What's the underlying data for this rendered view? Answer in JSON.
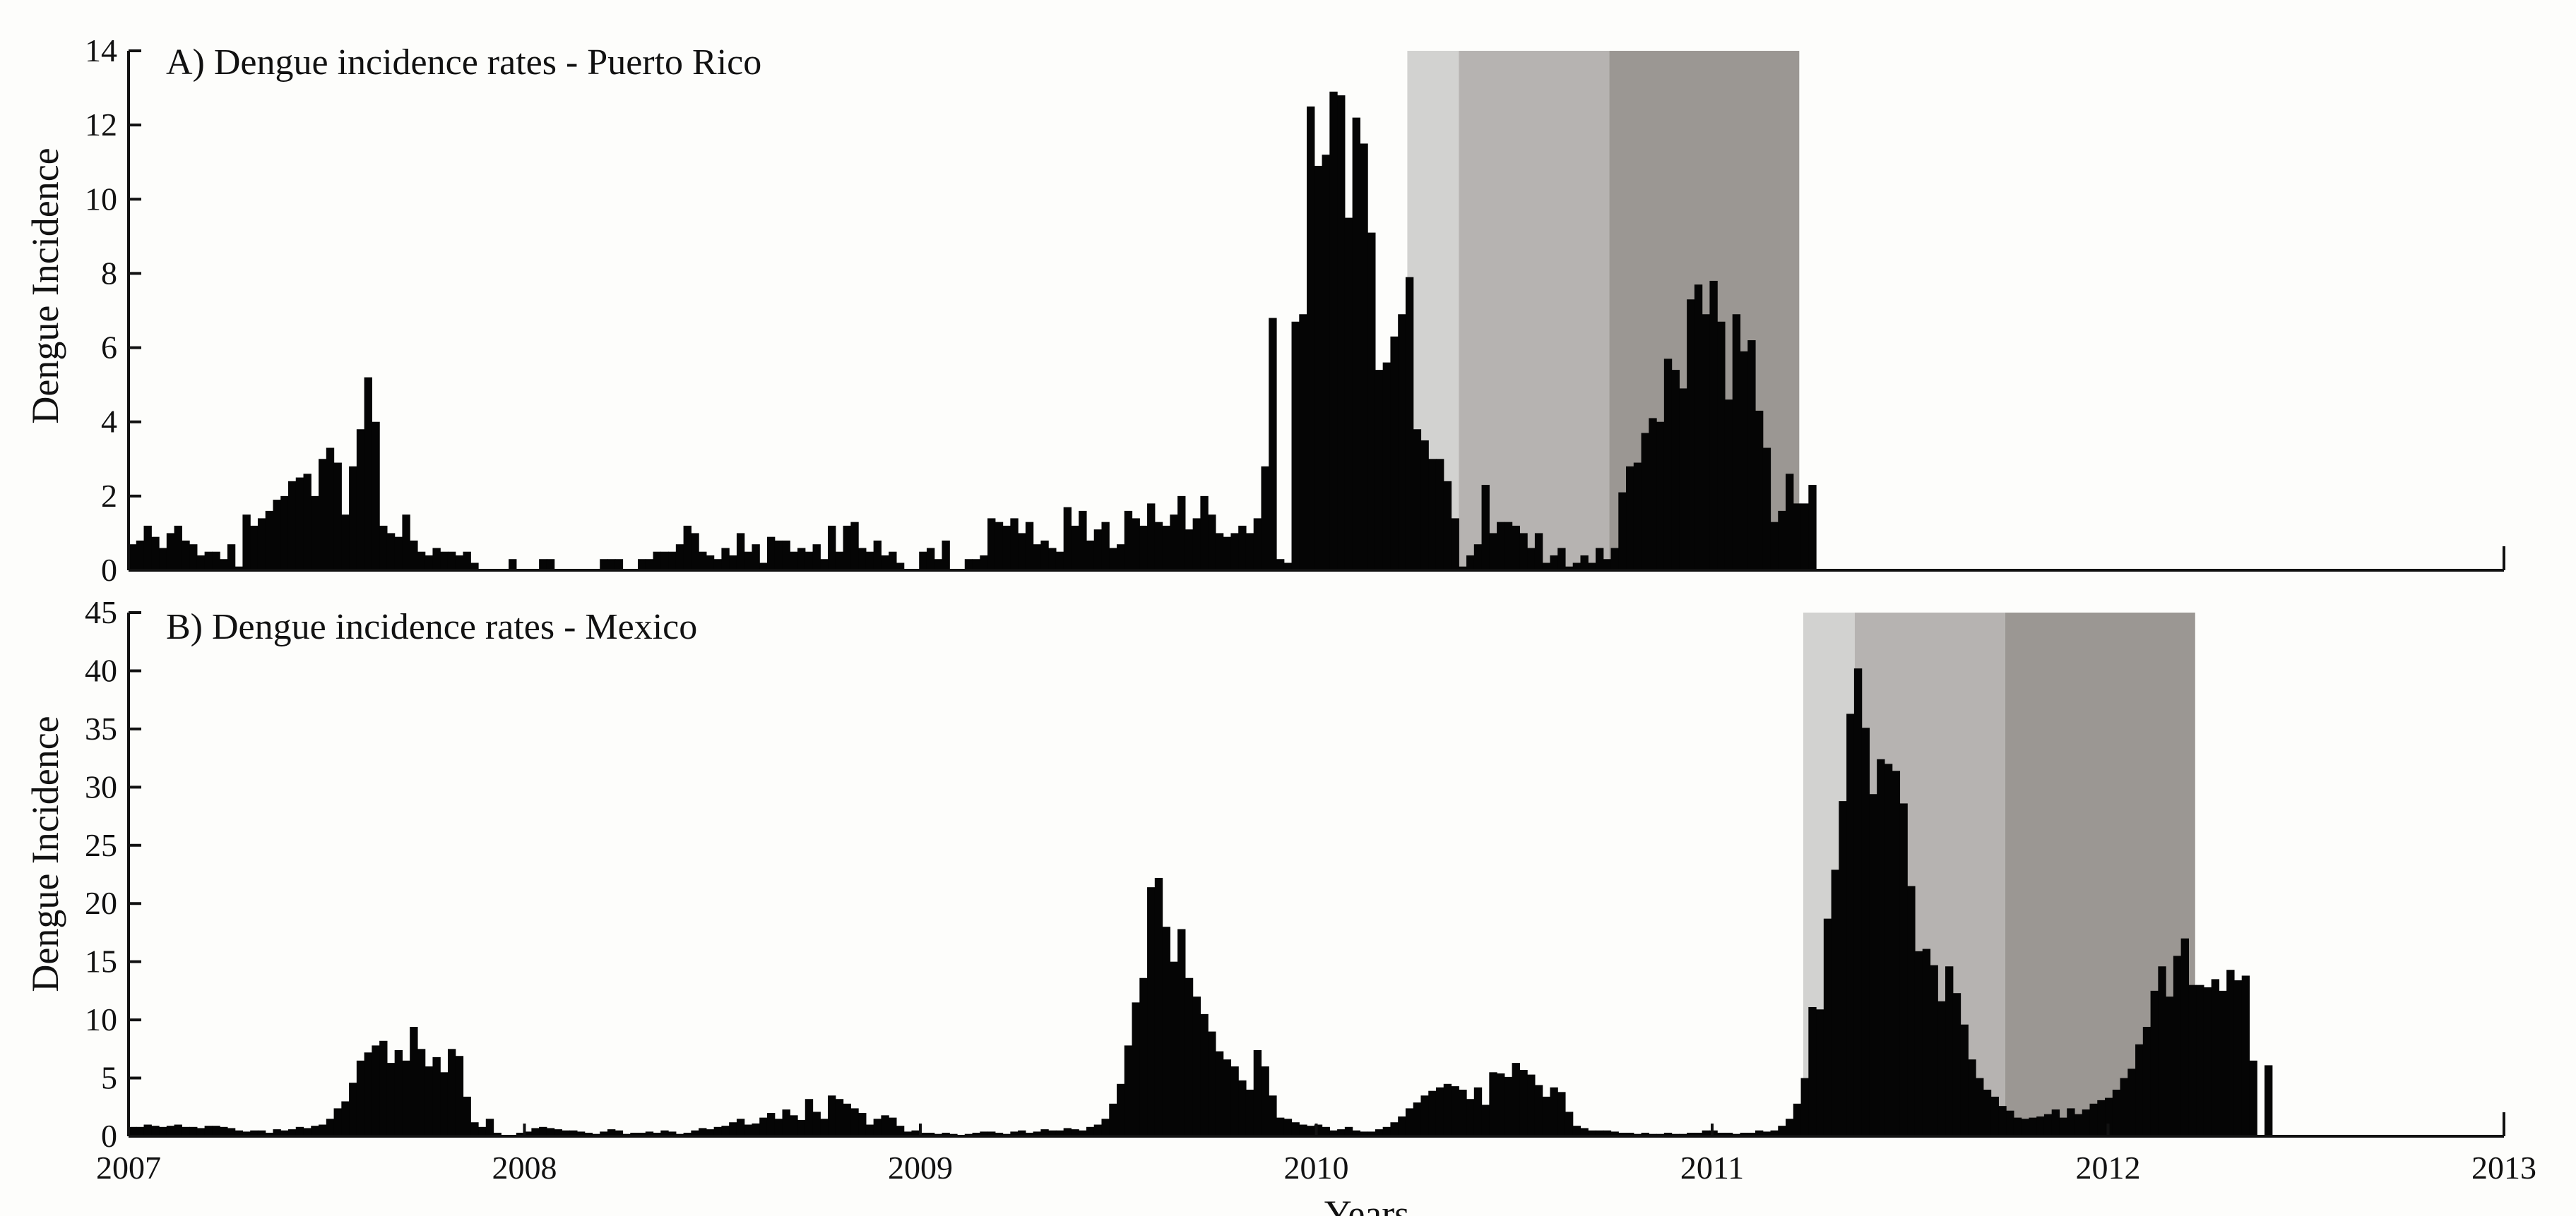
{
  "chart_data": [
    {
      "type": "bar",
      "title": "A) Dengue incidence rates - Puerto Rico",
      "ylabel": "Dengue Incidence",
      "xlabel": "",
      "xlim": [
        2007,
        2013
      ],
      "ylim": [
        0,
        14
      ],
      "yticks": [
        0,
        2,
        4,
        6,
        8,
        10,
        12,
        14
      ],
      "grid": false,
      "shaded_regions": [
        {
          "start": 2010.23,
          "end": 2010.36,
          "color": "#d2d2d0"
        },
        {
          "start": 2010.36,
          "end": 2010.74,
          "color": "#b6b3b1"
        },
        {
          "start": 2010.74,
          "end": 2011.22,
          "color": "#9b9793"
        }
      ],
      "x_start": 2007.0,
      "x_step": 0.0192,
      "values": [
        0.7,
        0.8,
        1.2,
        0.9,
        0.6,
        1.0,
        1.2,
        0.8,
        0.7,
        0.4,
        0.5,
        0.5,
        0.3,
        0.7,
        0.1,
        1.5,
        1.2,
        1.4,
        1.6,
        1.9,
        2.0,
        2.4,
        2.5,
        2.6,
        2.0,
        3.0,
        3.3,
        2.9,
        1.5,
        2.8,
        3.8,
        5.2,
        4.0,
        1.2,
        1.0,
        0.9,
        1.5,
        0.8,
        0.5,
        0.4,
        0.6,
        0.5,
        0.5,
        0.4,
        0.5,
        0.2,
        0,
        0,
        0,
        0,
        0.3,
        0,
        0,
        0,
        0.3,
        0.3,
        0,
        0,
        0,
        0,
        0,
        0,
        0.3,
        0.3,
        0.3,
        0,
        0,
        0.3,
        0.3,
        0.5,
        0.5,
        0.5,
        0.7,
        1.2,
        1.0,
        0.5,
        0.4,
        0.3,
        0.6,
        0.4,
        1.0,
        0.5,
        0.7,
        0.2,
        0.9,
        0.8,
        0.8,
        0.5,
        0.6,
        0.5,
        0.7,
        0.3,
        1.2,
        0.5,
        1.2,
        1.3,
        0.6,
        0.5,
        0.8,
        0.4,
        0.5,
        0.2,
        0,
        0,
        0.5,
        0.6,
        0.3,
        0.8,
        0,
        0,
        0.3,
        0.3,
        0.4,
        1.4,
        1.3,
        1.2,
        1.4,
        1.0,
        1.3,
        0.7,
        0.8,
        0.6,
        0.5,
        1.7,
        1.2,
        1.6,
        0.8,
        1.1,
        1.3,
        0.6,
        0.7,
        1.6,
        1.4,
        1.2,
        1.8,
        1.3,
        1.2,
        1.5,
        2.0,
        1.1,
        1.4,
        2.0,
        1.5,
        1.0,
        0.9,
        1.0,
        1.2,
        1.0,
        1.4,
        2.8,
        6.8,
        0.3,
        0.2,
        6.7,
        6.9,
        12.5,
        10.9,
        11.2,
        12.9,
        12.8,
        9.5,
        12.2,
        11.5,
        9.1,
        5.4,
        5.6,
        6.3,
        6.9,
        7.9,
        3.8,
        3.5,
        3.0,
        3.0,
        2.4,
        1.4,
        0.1,
        0.4,
        0.7,
        2.3,
        1.0,
        1.3,
        1.3,
        1.2,
        1.0,
        0.6,
        1.0,
        0.2,
        0.4,
        0.6,
        0.1,
        0.2,
        0.4,
        0.2,
        0.6,
        0.3,
        0.6,
        2.1,
        2.8,
        2.9,
        3.7,
        4.1,
        4.0,
        5.7,
        5.4,
        4.9,
        7.3,
        7.7,
        6.9,
        7.8,
        6.7,
        4.6,
        6.9,
        5.9,
        6.2,
        4.3,
        3.3,
        1.3,
        1.6,
        2.6,
        1.8,
        1.8,
        2.3
      ]
    },
    {
      "type": "bar",
      "title": "B) Dengue incidence rates - Mexico",
      "ylabel": "Dengue Incidence",
      "xlabel": "Years",
      "xlim": [
        2007,
        2013
      ],
      "ylim": [
        0,
        45
      ],
      "yticks": [
        0,
        5,
        10,
        15,
        20,
        25,
        30,
        35,
        40,
        45
      ],
      "xticks": [
        2007,
        2008,
        2009,
        2010,
        2011,
        2012,
        2013
      ],
      "grid": false,
      "shaded_regions": [
        {
          "start": 2011.23,
          "end": 2011.36,
          "color": "#d2d2d0"
        },
        {
          "start": 2011.36,
          "end": 2011.74,
          "color": "#b6b3b1"
        },
        {
          "start": 2011.74,
          "end": 2012.22,
          "color": "#9b9793"
        }
      ],
      "x_start": 2007.0,
      "x_step": 0.0192,
      "values": [
        0.8,
        0.8,
        1.0,
        0.9,
        0.8,
        0.9,
        1.0,
        0.8,
        0.8,
        0.7,
        0.9,
        0.9,
        0.8,
        0.7,
        0.5,
        0.4,
        0.5,
        0.5,
        0.3,
        0.6,
        0.5,
        0.6,
        0.8,
        0.7,
        0.9,
        1.0,
        1.5,
        2.4,
        3.0,
        4.6,
        6.5,
        7.2,
        7.8,
        8.2,
        6.3,
        7.4,
        6.5,
        9.4,
        7.5,
        6.0,
        6.8,
        5.5,
        7.5,
        6.9,
        3.4,
        1.2,
        0.8,
        1.5,
        0.3,
        0.1,
        0.1,
        0.3,
        0.4,
        0.7,
        0.8,
        0.7,
        0.6,
        0.5,
        0.5,
        0.4,
        0.3,
        0.2,
        0.4,
        0.6,
        0.5,
        0.2,
        0.3,
        0.3,
        0.4,
        0.3,
        0.5,
        0.4,
        0.2,
        0.3,
        0.5,
        0.7,
        0.6,
        0.8,
        0.9,
        1.2,
        1.5,
        1.0,
        1.1,
        1.6,
        2.0,
        1.5,
        2.3,
        1.8,
        1.4,
        3.2,
        2.1,
        1.5,
        3.5,
        3.2,
        2.8,
        2.4,
        2.0,
        1.0,
        1.5,
        1.8,
        1.6,
        0.9,
        0.4,
        0.5,
        0.3,
        0.3,
        0.2,
        0.3,
        0.2,
        0.1,
        0.2,
        0.3,
        0.4,
        0.4,
        0.3,
        0.2,
        0.4,
        0.5,
        0.3,
        0.4,
        0.6,
        0.5,
        0.5,
        0.7,
        0.6,
        0.5,
        0.8,
        1.0,
        1.5,
        2.8,
        4.5,
        7.8,
        11.5,
        13.6,
        21.4,
        22.2,
        18.0,
        15.0,
        17.8,
        13.6,
        12.0,
        10.5,
        9.0,
        7.3,
        6.6,
        6.0,
        4.8,
        4.0,
        7.4,
        6.0,
        3.5,
        1.6,
        1.5,
        1.2,
        1.0,
        0.9,
        1.0,
        0.8,
        0.5,
        0.6,
        0.8,
        0.5,
        0.4,
        0.4,
        0.6,
        0.8,
        1.2,
        1.7,
        2.4,
        2.9,
        3.5,
        3.9,
        4.2,
        4.5,
        4.3,
        4.0,
        3.2,
        4.2,
        2.7,
        5.5,
        5.4,
        5.1,
        6.3,
        5.7,
        5.3,
        4.4,
        3.4,
        4.2,
        3.8,
        2.1,
        0.9,
        0.7,
        0.5,
        0.5,
        0.5,
        0.4,
        0.3,
        0.3,
        0.2,
        0.3,
        0.2,
        0.2,
        0.3,
        0.2,
        0.2,
        0.3,
        0.3,
        0.5,
        0.5,
        0.3,
        0.3,
        0.2,
        0.3,
        0.3,
        0.5,
        0.4,
        0.5,
        0.9,
        1.5,
        2.8,
        5.0,
        11.1,
        10.9,
        18.7,
        22.9,
        28.8,
        36.3,
        40.2,
        35.1,
        29.4,
        32.4,
        32.0,
        31.4,
        28.6,
        21.5,
        15.9,
        16.1,
        14.7,
        11.6,
        14.6,
        12.3,
        9.6,
        6.6,
        5.0,
        4.0,
        3.4,
        2.6,
        2.2,
        1.6,
        1.5,
        1.6,
        1.7,
        1.9,
        2.3,
        1.6,
        2.4,
        1.9,
        2.3,
        2.8,
        3.1,
        3.3,
        4.0,
        5.0,
        5.8,
        7.9,
        9.4,
        12.5,
        14.6,
        12.0,
        15.5,
        17.0,
        13.0,
        13.0,
        12.8,
        13.5,
        12.5,
        14.3,
        13.4,
        13.8,
        6.5,
        0,
        6.1
      ]
    }
  ],
  "legend": []
}
